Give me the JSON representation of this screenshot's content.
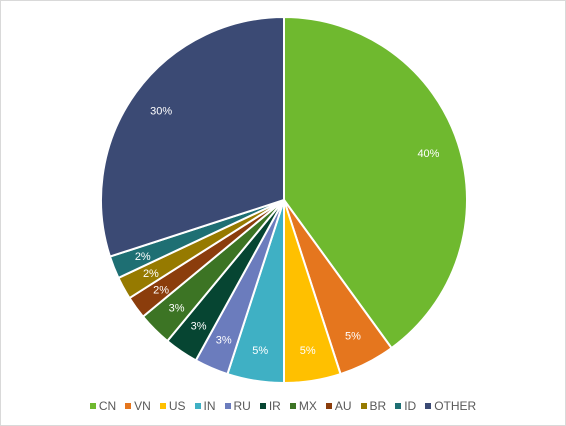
{
  "chart_data": {
    "type": "pie",
    "labels": [
      "CN",
      "VN",
      "US",
      "IN",
      "RU",
      "IR",
      "MX",
      "AU",
      "BR",
      "ID",
      "OTHER"
    ],
    "values": [
      40,
      5,
      5,
      5,
      3,
      3,
      3,
      2,
      2,
      2,
      30
    ],
    "data_labels": [
      "40%",
      "5%",
      "5%",
      "5%",
      "3%",
      "3%",
      "3%",
      "2%",
      "2%",
      "2%",
      "30%"
    ],
    "colors": [
      "#6fb92f",
      "#e5761e",
      "#ffc000",
      "#3fb0c4",
      "#6b7cbd",
      "#064532",
      "#3c7424",
      "#8b3d0c",
      "#967a00",
      "#1e6f73",
      "#3b4a74"
    ],
    "start_angle_deg": 0,
    "direction": "clockwise",
    "legend_position": "bottom"
  }
}
